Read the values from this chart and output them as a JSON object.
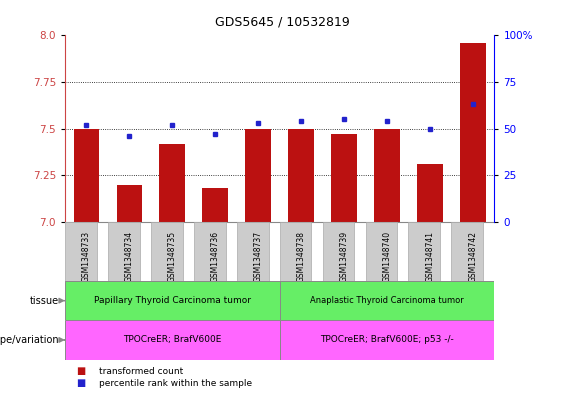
{
  "title": "GDS5645 / 10532819",
  "samples": [
    "GSM1348733",
    "GSM1348734",
    "GSM1348735",
    "GSM1348736",
    "GSM1348737",
    "GSM1348738",
    "GSM1348739",
    "GSM1348740",
    "GSM1348741",
    "GSM1348742"
  ],
  "transformed_count": [
    7.5,
    7.2,
    7.42,
    7.18,
    7.5,
    7.5,
    7.47,
    7.5,
    7.31,
    7.96
  ],
  "percentile_rank": [
    52,
    46,
    52,
    47,
    53,
    54,
    55,
    54,
    50,
    63
  ],
  "ylim": [
    7.0,
    8.0
  ],
  "yticks": [
    7.0,
    7.25,
    7.5,
    7.75,
    8.0
  ],
  "y2lim": [
    0,
    100
  ],
  "y2ticks": [
    0,
    25,
    50,
    75,
    100
  ],
  "bar_color": "#BB1111",
  "dot_color": "#2222CC",
  "tissue_group1_label": "Papillary Thyroid Carcinoma tumor",
  "tissue_group2_label": "Anaplastic Thyroid Carcinoma tumor",
  "genotype_group1_label": "TPOCreER; BrafV600E",
  "genotype_group2_label": "TPOCreER; BrafV600E; p53 -/-",
  "tissue_color": "#66EE66",
  "genotype_color": "#FF66FF",
  "sample_box_color": "#CCCCCC",
  "group1_count": 5,
  "group2_count": 5,
  "legend_red_label": "transformed count",
  "legend_blue_label": "percentile rank within the sample",
  "tissue_label": "tissue",
  "genotype_label": "genotype/variation"
}
